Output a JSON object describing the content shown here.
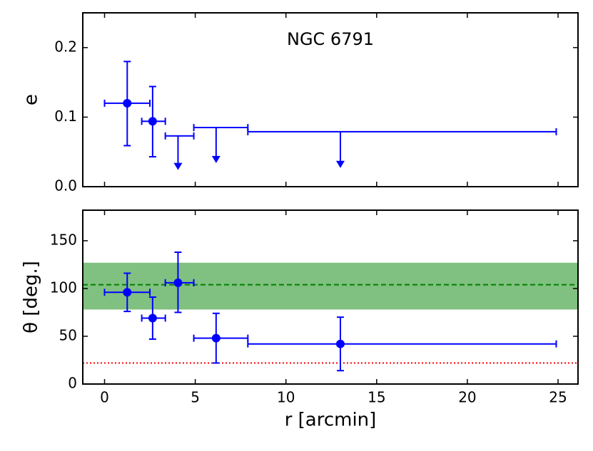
{
  "chart_data": [
    {
      "type": "errorbar",
      "annotation": "NGC 6791",
      "ylabel": "e",
      "xlim": [
        -1.2,
        26.1
      ],
      "xticks": [
        0,
        5,
        10,
        15,
        20,
        25
      ],
      "ylim": [
        0,
        0.25
      ],
      "yticks": [
        {
          "value": 0,
          "label": "0.0"
        },
        0.1,
        0.2
      ],
      "color": "#0000ff",
      "points": [
        {
          "x": 1.25,
          "y": 0.12,
          "xmin": 0,
          "xmax": 2.5,
          "ymin": 0.059,
          "ymax": 0.18
        },
        {
          "x": 2.65,
          "y": 0.094,
          "xmin": 2.05,
          "xmax": 3.35,
          "ymin": 0.043,
          "ymax": 0.144
        }
      ],
      "upper_limits": [
        {
          "x": 4.05,
          "y": 0.073,
          "xmin": 3.35,
          "xmax": 4.92,
          "arrow_to": 0.026
        },
        {
          "x": 6.15,
          "y": 0.085,
          "xmin": 4.92,
          "xmax": 7.9,
          "arrow_to": 0.036
        },
        {
          "x": 13.0,
          "y": 0.079,
          "xmin": 7.9,
          "xmax": 24.9,
          "arrow_to": 0.029
        }
      ]
    },
    {
      "type": "errorbar",
      "xlabel": "r [arcmin]",
      "ylabel": "θ [deg.]",
      "xlim": [
        -1.2,
        26.1
      ],
      "xticks": [
        0,
        5,
        10,
        15,
        20,
        25
      ],
      "ylim": [
        0,
        182
      ],
      "yticks": [
        0,
        50,
        100,
        150
      ],
      "color": "#0000ff",
      "band": [
        78,
        127
      ],
      "band_color": "#80c080",
      "dashed_line": 104,
      "dashed_color": "#008000",
      "dotted_line": 22,
      "dotted_color": "#ff0000",
      "points": [
        {
          "x": 1.25,
          "y": 96,
          "xmin": 0,
          "xmax": 2.5,
          "ymin": 76,
          "ymax": 116
        },
        {
          "x": 2.65,
          "y": 69,
          "xmin": 2.05,
          "xmax": 3.35,
          "ymin": 47,
          "ymax": 91
        },
        {
          "x": 4.05,
          "y": 106,
          "xmin": 3.35,
          "xmax": 4.92,
          "ymin": 75,
          "ymax": 138
        },
        {
          "x": 6.15,
          "y": 48,
          "xmin": 4.92,
          "xmax": 7.9,
          "ymin": 22,
          "ymax": 74
        },
        {
          "x": 13.0,
          "y": 42,
          "xmin": 7.9,
          "xmax": 24.9,
          "ymin": 14,
          "ymax": 70
        }
      ]
    }
  ]
}
